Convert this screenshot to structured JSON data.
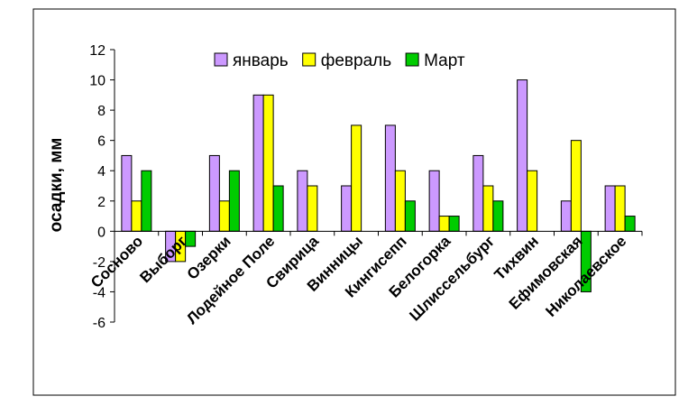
{
  "chart_data": {
    "type": "bar",
    "ylabel": "осадки, мм",
    "ylim": [
      -6,
      12
    ],
    "yticks": [
      -6,
      -4,
      -2,
      0,
      2,
      4,
      6,
      8,
      10,
      12
    ],
    "legend_placement": "top",
    "categories": [
      "Сосново",
      "Выборг",
      "Озерки",
      "Лодейное Поле",
      "Свирица",
      "Винницы",
      "Кингисепп",
      "Белогорка",
      "Шлиссельбург",
      "Тихвин",
      "Ефимовская",
      "Николаевское"
    ],
    "series": [
      {
        "name": "январь",
        "color": "#cc99ff",
        "values": [
          5,
          -2,
          5,
          9,
          4,
          3,
          7,
          4,
          5,
          10,
          2,
          3
        ]
      },
      {
        "name": "февраль",
        "color": "#ffff00",
        "values": [
          2,
          -2,
          2,
          9,
          3,
          7,
          4,
          1,
          3,
          4,
          6,
          3
        ]
      },
      {
        "name": "Март",
        "color": "#00cc00",
        "values": [
          4,
          -1,
          4,
          3,
          0,
          0,
          2,
          1,
          2,
          0,
          -4,
          1
        ]
      }
    ]
  }
}
